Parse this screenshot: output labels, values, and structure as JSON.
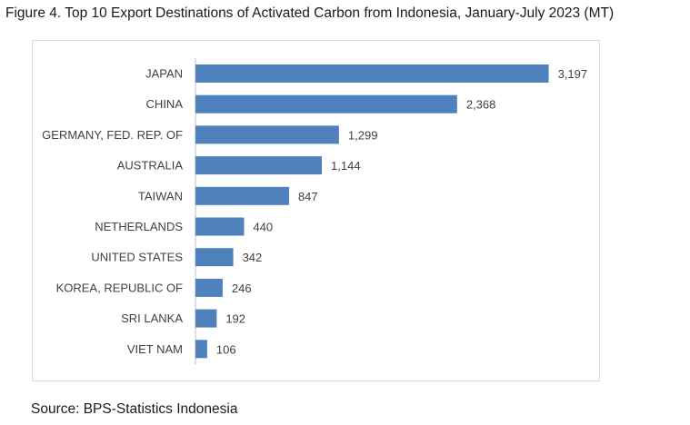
{
  "figure": {
    "title": "Figure 4. Top 10 Export Destinations of Activated Carbon from Indonesia, January-July 2023 (MT)",
    "source": "Source: BPS-Statistics Indonesia"
  },
  "chart_data": {
    "type": "bar",
    "orientation": "horizontal",
    "title": "Figure 4. Top 10 Export Destinations of Activated Carbon from Indonesia, January-July 2023 (MT)",
    "xlabel": "",
    "ylabel": "",
    "categories": [
      "JAPAN",
      "CHINA",
      "GERMANY, FED. REP. OF",
      "AUSTRALIA",
      "TAIWAN",
      "NETHERLANDS",
      "UNITED STATES",
      "KOREA, REPUBLIC OF",
      "SRI LANKA",
      "VIET NAM"
    ],
    "values": [
      3197,
      2368,
      1299,
      1144,
      847,
      440,
      342,
      246,
      192,
      106
    ],
    "value_labels": [
      "3,197",
      "2,368",
      "1,299",
      "1,144",
      "847",
      "440",
      "342",
      "246",
      "192",
      "106"
    ],
    "xlim": [
      0,
      3500
    ],
    "grid": false,
    "legend": "none",
    "bar_color": "#4f81bd"
  }
}
